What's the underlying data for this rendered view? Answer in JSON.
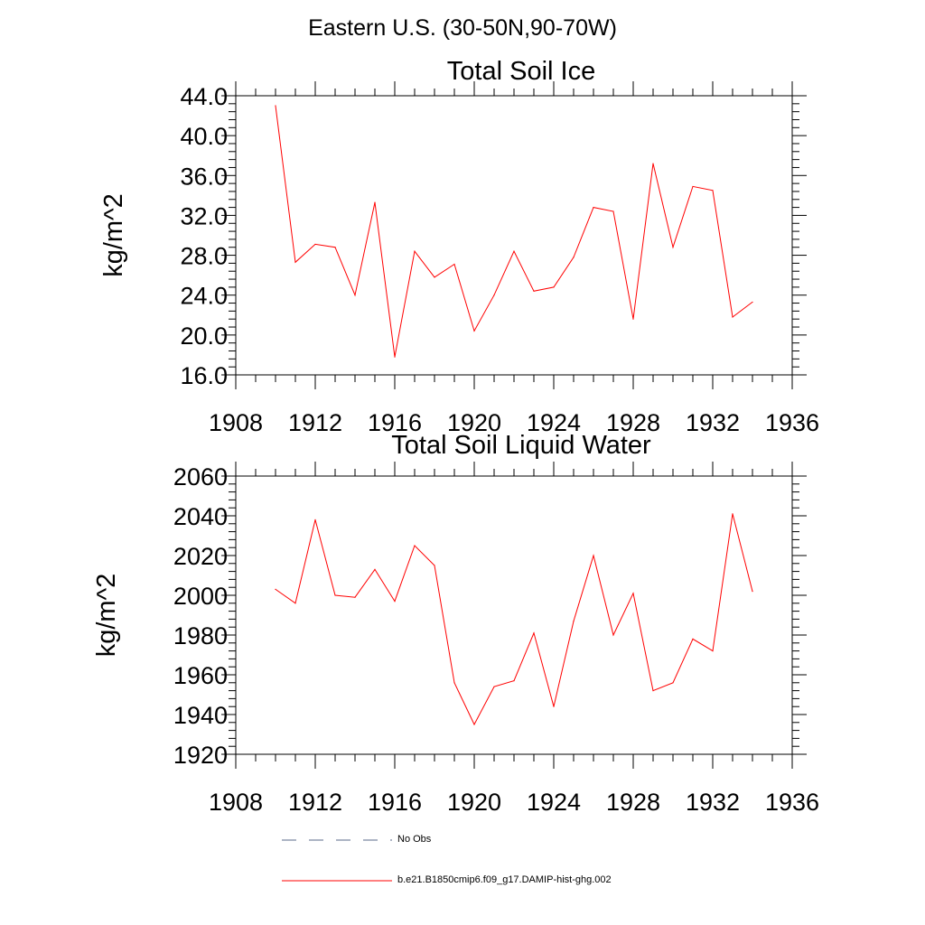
{
  "figure_title": "Eastern U.S. (30-50N,90-70W)",
  "colors": {
    "series": "#ff0000",
    "axis": "#000000",
    "no_obs": "#5a6a8a"
  },
  "legend": [
    {
      "label": "No Obs",
      "style": "dashed"
    },
    {
      "label": "b.e21.B1850cmip6.f09_g17.DAMIP-hist-ghg.002",
      "style": "solid"
    }
  ],
  "chart_data": [
    {
      "type": "line",
      "title": "Total Soil Ice",
      "ylabel": "kg/m^2",
      "xlabel": "",
      "xlim": [
        1908,
        1936
      ],
      "ylim": [
        16,
        44
      ],
      "xticks": [
        1908,
        1912,
        1916,
        1920,
        1924,
        1928,
        1932,
        1936
      ],
      "yticks": [
        "16.0",
        "20.0",
        "24.0",
        "28.0",
        "32.0",
        "36.0",
        "40.0",
        "44.0"
      ],
      "grid": false,
      "series": [
        {
          "name": "b.e21.B1850cmip6.f09_g17.DAMIP-hist-ghg.002",
          "x": [
            1910,
            1911,
            1912,
            1913,
            1914,
            1915,
            1916,
            1917,
            1918,
            1919,
            1920,
            1921,
            1922,
            1923,
            1924,
            1925,
            1926,
            1927,
            1928,
            1929,
            1930,
            1931,
            1932,
            1933,
            1934
          ],
          "values": [
            43.0,
            27.3,
            29.1,
            28.8,
            24.0,
            33.3,
            17.8,
            28.4,
            25.8,
            27.1,
            20.4,
            24.0,
            28.4,
            24.4,
            24.8,
            27.8,
            32.8,
            32.4,
            21.6,
            37.2,
            28.8,
            34.9,
            34.5,
            21.8,
            23.3
          ]
        }
      ]
    },
    {
      "type": "line",
      "title": "Total Soil Liquid Water",
      "ylabel": "kg/m^2",
      "xlabel": "",
      "xlim": [
        1908,
        1936
      ],
      "ylim": [
        1920,
        2060
      ],
      "xticks": [
        1908,
        1912,
        1916,
        1920,
        1924,
        1928,
        1932,
        1936
      ],
      "yticks": [
        "1920",
        "1940",
        "1960",
        "1980",
        "2000",
        "2020",
        "2040",
        "2060"
      ],
      "grid": false,
      "series": [
        {
          "name": "b.e21.B1850cmip6.f09_g17.DAMIP-hist-ghg.002",
          "x": [
            1910,
            1911,
            1912,
            1913,
            1914,
            1915,
            1916,
            1917,
            1918,
            1919,
            1920,
            1921,
            1922,
            1923,
            1924,
            1925,
            1926,
            1927,
            1928,
            1929,
            1930,
            1931,
            1932,
            1933,
            1934
          ],
          "values": [
            2003,
            1996,
            2038,
            2000,
            1999,
            2013,
            1997,
            2025,
            2015,
            1956,
            1935,
            1954,
            1957,
            1981,
            1944,
            1987,
            2020,
            1980,
            2001,
            1952,
            1956,
            1978,
            1972,
            2041,
            2002
          ]
        }
      ]
    }
  ]
}
